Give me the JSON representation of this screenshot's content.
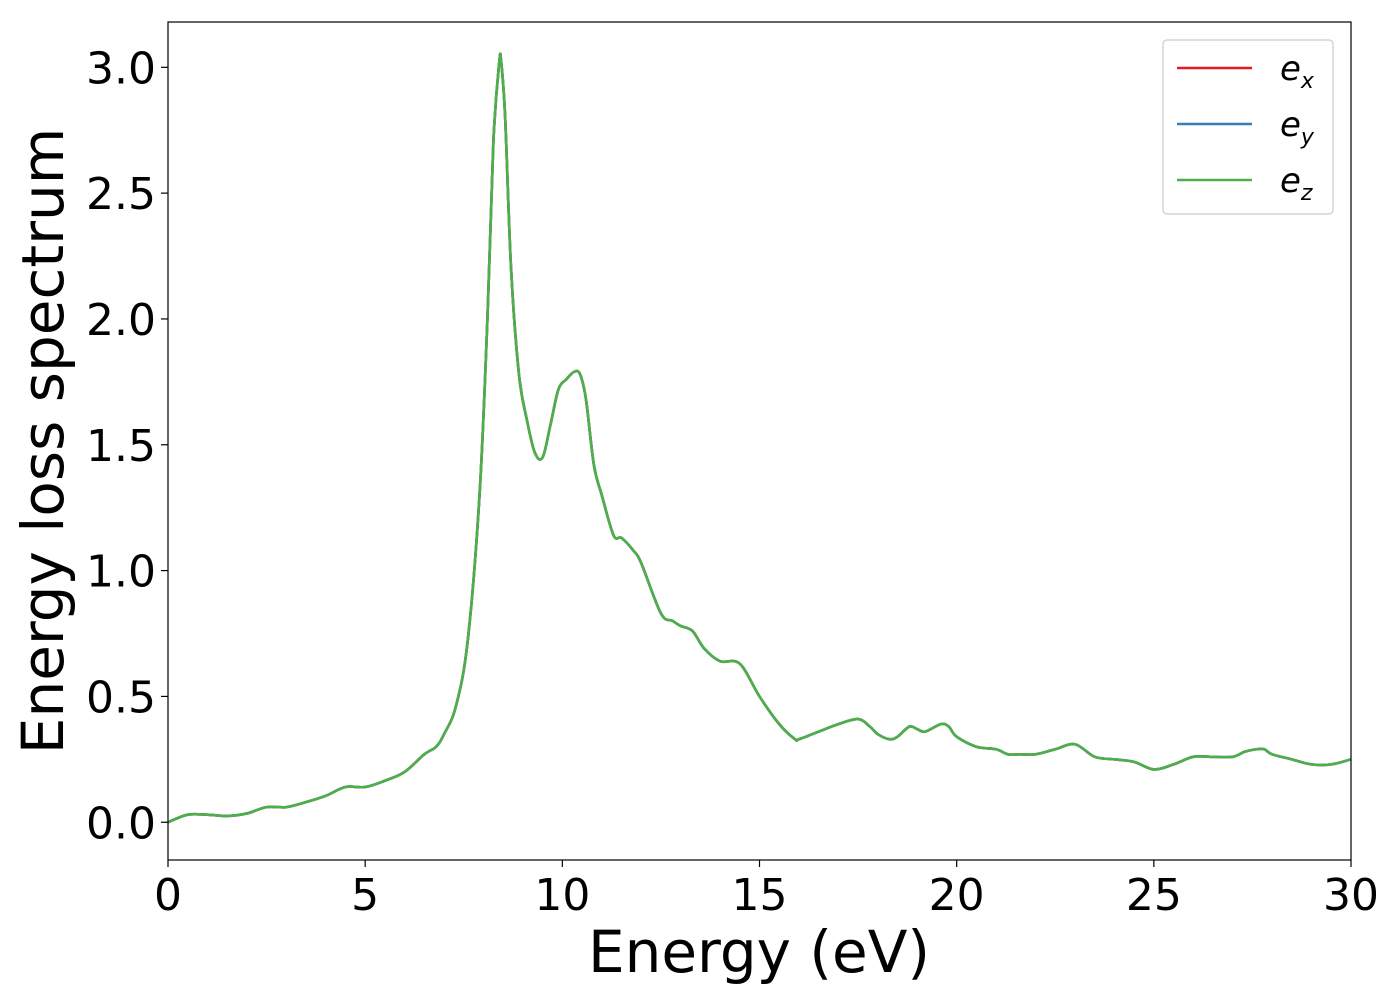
{
  "chart_data": {
    "type": "line",
    "title": "",
    "xlabel": "Energy (eV)",
    "ylabel": "Energy loss spectrum",
    "xlim": [
      0,
      30
    ],
    "ylim": [
      -0.15,
      3.18
    ],
    "xticks": [
      0,
      5,
      10,
      15,
      20,
      25,
      30
    ],
    "xtick_labels": [
      "0",
      "5",
      "10",
      "15",
      "20",
      "25",
      "30"
    ],
    "yticks": [
      0.0,
      0.5,
      1.0,
      1.5,
      2.0,
      2.5,
      3.0
    ],
    "ytick_labels": [
      "0.0",
      "0.5",
      "1.0",
      "1.5",
      "2.0",
      "2.5",
      "3.0"
    ],
    "grid": false,
    "legend_position": "top-right",
    "x": [
      0.0,
      0.5,
      1.0,
      1.5,
      2.0,
      2.5,
      3.0,
      3.5,
      4.0,
      4.5,
      5.0,
      5.5,
      6.0,
      6.5,
      6.8,
      7.0,
      7.3,
      7.6,
      7.9,
      8.1,
      8.25,
      8.4,
      8.45,
      8.55,
      8.7,
      8.9,
      9.1,
      9.3,
      9.5,
      9.7,
      9.9,
      10.1,
      10.3,
      10.45,
      10.6,
      10.8,
      11.0,
      11.3,
      11.5,
      11.8,
      12.0,
      12.5,
      12.8,
      13.0,
      13.3,
      13.6,
      14.0,
      14.5,
      15.0,
      15.5,
      15.9,
      16.0,
      16.5,
      17.0,
      17.5,
      17.8,
      18.0,
      18.3,
      18.5,
      18.8,
      19.0,
      19.2,
      19.6,
      19.8,
      20.0,
      20.5,
      21.0,
      21.3,
      21.6,
      22.0,
      22.5,
      23.0,
      23.5,
      24.0,
      24.5,
      25.0,
      25.5,
      26.0,
      26.5,
      27.0,
      27.3,
      27.6,
      27.8,
      28.0,
      28.5,
      29.0,
      29.5,
      30.0
    ],
    "series": [
      {
        "name": "e_x",
        "color": "#e41a1c",
        "values": [
          0.0,
          0.03,
          0.03,
          0.025,
          0.035,
          0.06,
          0.06,
          0.08,
          0.105,
          0.14,
          0.14,
          0.165,
          0.2,
          0.27,
          0.3,
          0.35,
          0.46,
          0.72,
          1.3,
          2.0,
          2.7,
          3.02,
          3.02,
          2.8,
          2.2,
          1.78,
          1.6,
          1.47,
          1.45,
          1.58,
          1.72,
          1.76,
          1.79,
          1.78,
          1.68,
          1.42,
          1.3,
          1.14,
          1.13,
          1.08,
          1.03,
          0.83,
          0.8,
          0.78,
          0.76,
          0.69,
          0.64,
          0.63,
          0.5,
          0.39,
          0.33,
          0.33,
          0.36,
          0.39,
          0.41,
          0.38,
          0.35,
          0.33,
          0.34,
          0.38,
          0.37,
          0.36,
          0.39,
          0.38,
          0.34,
          0.3,
          0.29,
          0.27,
          0.27,
          0.27,
          0.29,
          0.31,
          0.26,
          0.25,
          0.24,
          0.21,
          0.23,
          0.26,
          0.26,
          0.26,
          0.28,
          0.29,
          0.29,
          0.27,
          0.25,
          0.23,
          0.23,
          0.25
        ]
      },
      {
        "name": "e_y",
        "color": "#377eb8",
        "values": [
          0.0,
          0.03,
          0.03,
          0.025,
          0.035,
          0.06,
          0.06,
          0.08,
          0.105,
          0.14,
          0.14,
          0.165,
          0.2,
          0.27,
          0.3,
          0.35,
          0.46,
          0.72,
          1.3,
          2.0,
          2.7,
          3.02,
          3.02,
          2.8,
          2.2,
          1.78,
          1.6,
          1.47,
          1.45,
          1.58,
          1.72,
          1.76,
          1.79,
          1.78,
          1.68,
          1.42,
          1.3,
          1.14,
          1.13,
          1.08,
          1.03,
          0.83,
          0.8,
          0.78,
          0.76,
          0.69,
          0.64,
          0.63,
          0.5,
          0.39,
          0.33,
          0.33,
          0.36,
          0.39,
          0.41,
          0.38,
          0.35,
          0.33,
          0.34,
          0.38,
          0.37,
          0.36,
          0.39,
          0.38,
          0.34,
          0.3,
          0.29,
          0.27,
          0.27,
          0.27,
          0.29,
          0.31,
          0.26,
          0.25,
          0.24,
          0.21,
          0.23,
          0.26,
          0.26,
          0.26,
          0.28,
          0.29,
          0.29,
          0.27,
          0.25,
          0.23,
          0.23,
          0.25
        ]
      },
      {
        "name": "e_z",
        "color": "#4daf4a",
        "values": [
          0.0,
          0.03,
          0.03,
          0.025,
          0.035,
          0.06,
          0.06,
          0.08,
          0.105,
          0.14,
          0.14,
          0.165,
          0.2,
          0.27,
          0.3,
          0.35,
          0.46,
          0.72,
          1.3,
          2.0,
          2.7,
          3.02,
          3.02,
          2.8,
          2.2,
          1.78,
          1.6,
          1.47,
          1.45,
          1.58,
          1.72,
          1.76,
          1.79,
          1.78,
          1.68,
          1.42,
          1.3,
          1.14,
          1.13,
          1.08,
          1.03,
          0.83,
          0.8,
          0.78,
          0.76,
          0.69,
          0.64,
          0.63,
          0.5,
          0.39,
          0.33,
          0.33,
          0.36,
          0.39,
          0.41,
          0.38,
          0.35,
          0.33,
          0.34,
          0.38,
          0.37,
          0.36,
          0.39,
          0.38,
          0.34,
          0.3,
          0.29,
          0.27,
          0.27,
          0.27,
          0.29,
          0.31,
          0.26,
          0.25,
          0.24,
          0.21,
          0.23,
          0.26,
          0.26,
          0.26,
          0.28,
          0.29,
          0.29,
          0.27,
          0.25,
          0.23,
          0.23,
          0.25
        ]
      }
    ],
    "legend": [
      {
        "main": "e",
        "sub": "x"
      },
      {
        "main": "e",
        "sub": "y"
      },
      {
        "main": "e",
        "sub": "z"
      }
    ]
  }
}
